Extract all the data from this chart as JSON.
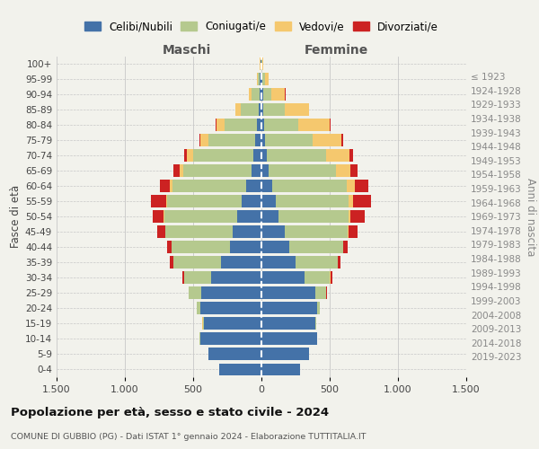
{
  "age_groups": [
    "0-4",
    "5-9",
    "10-14",
    "15-19",
    "20-24",
    "25-29",
    "30-34",
    "35-39",
    "40-44",
    "45-49",
    "50-54",
    "55-59",
    "60-64",
    "65-69",
    "70-74",
    "75-79",
    "80-84",
    "85-89",
    "90-94",
    "95-99",
    "100+"
  ],
  "birth_years": [
    "2019-2023",
    "2014-2018",
    "2009-2013",
    "2004-2008",
    "1999-2003",
    "1994-1998",
    "1989-1993",
    "1984-1988",
    "1979-1983",
    "1974-1978",
    "1969-1973",
    "1964-1968",
    "1959-1963",
    "1954-1958",
    "1949-1953",
    "1944-1948",
    "1939-1943",
    "1934-1938",
    "1929-1933",
    "1924-1928",
    "≤ 1923"
  ],
  "maschi": {
    "celibe": [
      310,
      385,
      450,
      420,
      445,
      440,
      370,
      295,
      230,
      210,
      175,
      145,
      110,
      70,
      60,
      45,
      35,
      22,
      15,
      10,
      5
    ],
    "coniugato": [
      0,
      1,
      4,
      10,
      28,
      90,
      195,
      350,
      425,
      495,
      535,
      545,
      540,
      500,
      440,
      340,
      235,
      130,
      58,
      18,
      4
    ],
    "vedovo": [
      0,
      0,
      0,
      1,
      1,
      1,
      1,
      1,
      1,
      2,
      4,
      10,
      18,
      28,
      48,
      60,
      58,
      38,
      18,
      4,
      1
    ],
    "divorziato": [
      0,
      0,
      1,
      2,
      2,
      5,
      12,
      22,
      32,
      55,
      85,
      110,
      75,
      45,
      20,
      10,
      5,
      3,
      2,
      0,
      0
    ]
  },
  "femmine": {
    "nubile": [
      285,
      348,
      408,
      395,
      408,
      398,
      318,
      248,
      205,
      168,
      125,
      105,
      82,
      52,
      40,
      28,
      20,
      14,
      10,
      7,
      3
    ],
    "coniugata": [
      0,
      0,
      2,
      6,
      18,
      75,
      185,
      310,
      392,
      465,
      515,
      535,
      545,
      495,
      435,
      345,
      250,
      155,
      65,
      18,
      3
    ],
    "vedova": [
      0,
      0,
      0,
      1,
      1,
      2,
      2,
      2,
      3,
      7,
      14,
      28,
      58,
      102,
      172,
      212,
      228,
      178,
      98,
      28,
      4
    ],
    "divorziata": [
      0,
      0,
      1,
      2,
      2,
      5,
      12,
      22,
      32,
      62,
      105,
      135,
      95,
      52,
      25,
      15,
      8,
      4,
      2,
      0,
      0
    ]
  },
  "colors": {
    "celibe": "#4472a8",
    "coniugato": "#b5c98e",
    "vedovo": "#f5c86e",
    "divorziato": "#cc2222"
  },
  "xlim": 1500,
  "title": "Popolazione per età, sesso e stato civile - 2024",
  "subtitle": "COMUNE DI GUBBIO (PG) - Dati ISTAT 1° gennaio 2024 - Elaborazione TUTTITALIA.IT",
  "bg_color": "#f2f2ec",
  "grid_color": "#c8c8c8"
}
